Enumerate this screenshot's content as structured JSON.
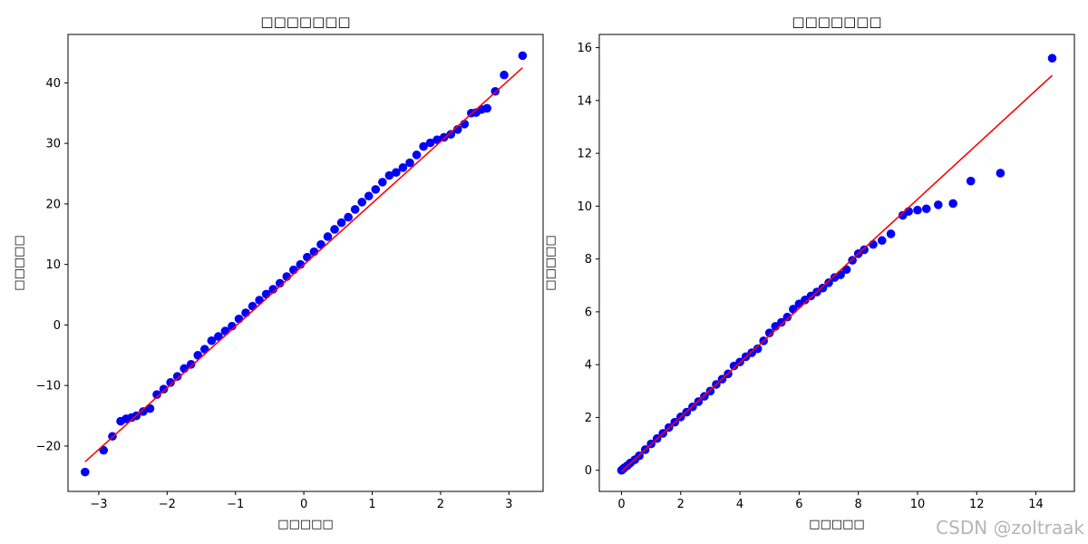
{
  "watermark": "CSDN @zoltraak",
  "chart_data": [
    {
      "type": "scatter",
      "title": "□□□□□□□",
      "xlabel": "□□□□□",
      "ylabel": "□□□□□",
      "xlim": [
        -3.45,
        3.5
      ],
      "ylim": [
        -27.5,
        48
      ],
      "xticks": [
        -3,
        -2,
        -1,
        0,
        1,
        2,
        3
      ],
      "yticks": [
        -20,
        -10,
        0,
        10,
        20,
        30,
        40
      ],
      "marker_color": "#0000ff",
      "line_color": "#ff0000",
      "fit_line": {
        "x": [
          -3.2,
          3.2
        ],
        "y": [
          -22.6,
          42.5
        ]
      },
      "series": [
        {
          "x": [
            -3.2,
            -2.93,
            -2.8,
            -2.68,
            -2.6,
            -2.52,
            -2.45,
            -2.35,
            -2.25,
            -2.15,
            -2.05,
            -1.95,
            -1.85,
            -1.75,
            -1.65,
            -1.55,
            -1.45,
            -1.35,
            -1.25,
            -1.15,
            -1.05,
            -0.95,
            -0.85,
            -0.75,
            -0.65,
            -0.55,
            -0.45,
            -0.35,
            -0.25,
            -0.15,
            -0.05,
            0.05,
            0.15,
            0.25,
            0.35,
            0.45,
            0.55,
            0.65,
            0.75,
            0.85,
            0.95,
            1.05,
            1.15,
            1.25,
            1.35,
            1.45,
            1.55,
            1.65,
            1.75,
            1.85,
            1.95,
            2.05,
            2.15,
            2.25,
            2.35,
            2.45,
            2.52,
            2.6,
            2.68,
            2.8,
            2.93,
            3.2
          ],
          "y": [
            -24.3,
            -20.7,
            -18.4,
            -15.9,
            -15.5,
            -15.3,
            -15.0,
            -14.3,
            -13.8,
            -11.5,
            -10.6,
            -9.5,
            -8.5,
            -7.2,
            -6.5,
            -5.0,
            -4.0,
            -2.6,
            -1.9,
            -1.0,
            -0.2,
            1.0,
            2.0,
            3.1,
            4.1,
            5.1,
            5.9,
            6.9,
            8.0,
            9.1,
            10.0,
            11.2,
            12.1,
            13.3,
            14.6,
            15.8,
            16.9,
            17.8,
            19.1,
            20.3,
            21.3,
            22.4,
            23.6,
            24.7,
            25.2,
            26.0,
            26.8,
            28.1,
            29.5,
            30.1,
            30.6,
            31.0,
            31.5,
            32.3,
            33.2,
            35.0,
            35.1,
            35.6,
            35.8,
            38.6,
            41.3,
            44.5
          ]
        }
      ]
    },
    {
      "type": "scatter",
      "title": "□□□□□□□",
      "xlabel": "□□□□□",
      "ylabel": "□□□□□",
      "xlim": [
        -0.75,
        15.3
      ],
      "ylim": [
        -0.8,
        16.5
      ],
      "xticks": [
        0,
        2,
        4,
        6,
        8,
        10,
        12,
        14
      ],
      "yticks": [
        0,
        2,
        4,
        6,
        8,
        10,
        12,
        14,
        16
      ],
      "marker_color": "#0000ff",
      "line_color": "#ff0000",
      "fit_line": {
        "x": [
          0,
          14.55
        ],
        "y": [
          -0.05,
          14.95
        ]
      },
      "series": [
        {
          "x": [
            0,
            0.05,
            0.1,
            0.2,
            0.3,
            0.45,
            0.6,
            0.8,
            1.0,
            1.2,
            1.4,
            1.6,
            1.8,
            2.0,
            2.2,
            2.4,
            2.6,
            2.8,
            3.0,
            3.2,
            3.4,
            3.6,
            3.8,
            4.0,
            4.2,
            4.4,
            4.6,
            4.8,
            5.0,
            5.2,
            5.4,
            5.6,
            5.8,
            6.0,
            6.2,
            6.4,
            6.6,
            6.8,
            7.0,
            7.2,
            7.4,
            7.6,
            7.8,
            8.0,
            8.2,
            8.5,
            8.8,
            9.1,
            9.5,
            9.7,
            10.0,
            10.3,
            10.7,
            11.2,
            11.8,
            12.8,
            14.55
          ],
          "y": [
            0.0,
            0.05,
            0.1,
            0.18,
            0.28,
            0.4,
            0.55,
            0.78,
            1.0,
            1.2,
            1.4,
            1.62,
            1.82,
            2.02,
            2.2,
            2.4,
            2.6,
            2.8,
            3.0,
            3.25,
            3.45,
            3.65,
            3.95,
            4.1,
            4.3,
            4.45,
            4.6,
            4.9,
            5.2,
            5.45,
            5.6,
            5.8,
            6.1,
            6.3,
            6.45,
            6.6,
            6.75,
            6.9,
            7.1,
            7.3,
            7.4,
            7.6,
            7.95,
            8.2,
            8.35,
            8.55,
            8.7,
            8.95,
            9.65,
            9.8,
            9.85,
            9.9,
            10.05,
            10.1,
            10.95,
            11.25,
            15.6
          ]
        }
      ]
    }
  ]
}
